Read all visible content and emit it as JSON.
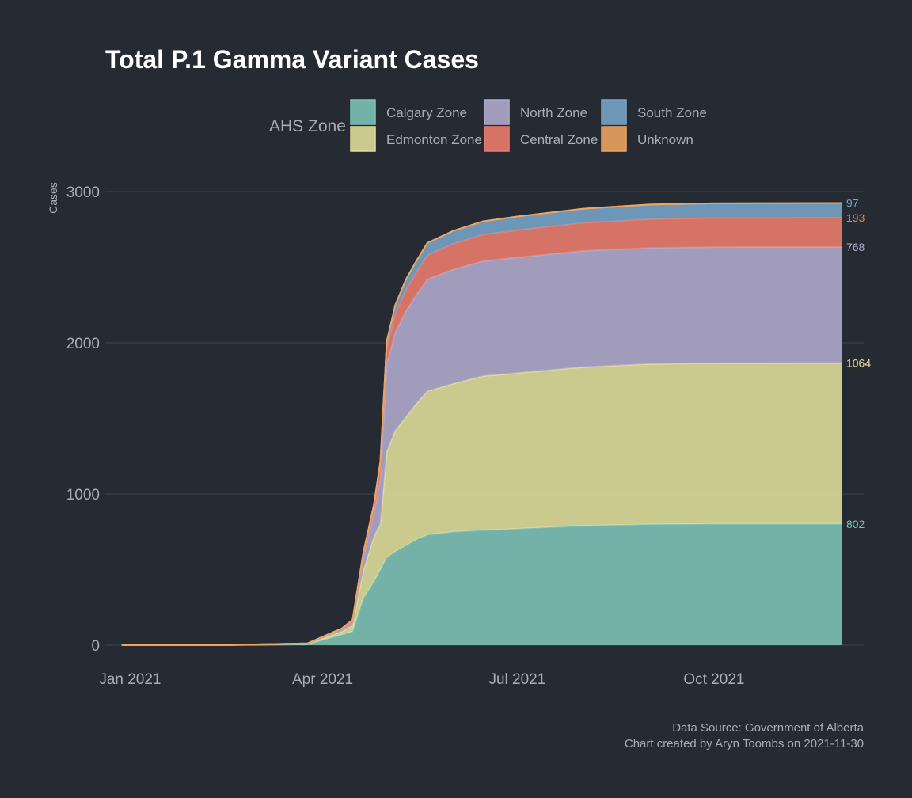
{
  "chart_data": {
    "type": "area",
    "stacked": true,
    "title": "Total P.1 Gamma Variant Cases",
    "ylabel": "Cases",
    "xlabel": "",
    "ylim": [
      0,
      3000
    ],
    "xlim": [
      "2020-12-20",
      "2021-12-10"
    ],
    "grid": true,
    "legend": {
      "title": "AHS Zone",
      "placement": "top",
      "items": [
        "Calgary Zone",
        "Edmonton Zone",
        "North Zone",
        "Central Zone",
        "South Zone",
        "Unknown"
      ]
    },
    "x_ticks": [
      {
        "date": "2021-01-01",
        "label": "Jan 2021"
      },
      {
        "date": "2021-04-01",
        "label": "Apr 2021"
      },
      {
        "date": "2021-07-01",
        "label": "Jul 2021"
      },
      {
        "date": "2021-10-01",
        "label": "Oct 2021"
      }
    ],
    "y_ticks": [
      0,
      1000,
      2000,
      3000
    ],
    "x": [
      "2020-12-28",
      "2021-02-10",
      "2021-03-25",
      "2021-04-10",
      "2021-04-15",
      "2021-04-20",
      "2021-04-25",
      "2021-04-28",
      "2021-05-01",
      "2021-05-05",
      "2021-05-10",
      "2021-05-15",
      "2021-05-20",
      "2021-06-01",
      "2021-06-15",
      "2021-07-01",
      "2021-08-01",
      "2021-09-01",
      "2021-10-01",
      "2021-11-30"
    ],
    "series": [
      {
        "name": "Calgary Zone",
        "color": "#7fc4b8",
        "end_label": "802",
        "values": [
          0,
          0,
          5,
          70,
          90,
          310,
          420,
          500,
          580,
          620,
          660,
          700,
          730,
          750,
          760,
          770,
          790,
          800,
          802,
          802
        ]
      },
      {
        "name": "Edmonton Zone",
        "color": "#e1e09b",
        "end_label": "1064",
        "values": [
          0,
          0,
          5,
          20,
          40,
          180,
          300,
          300,
          700,
          800,
          850,
          900,
          950,
          980,
          1020,
          1030,
          1050,
          1060,
          1063,
          1064
        ]
      },
      {
        "name": "North Zone",
        "color": "#b3abcf",
        "end_label": "768",
        "values": [
          0,
          0,
          1,
          10,
          20,
          90,
          150,
          300,
          580,
          650,
          700,
          720,
          740,
          755,
          760,
          765,
          768,
          768,
          768,
          768
        ]
      },
      {
        "name": "Central Zone",
        "color": "#ee7d6d",
        "end_label": "193",
        "values": [
          0,
          0,
          1,
          8,
          12,
          20,
          40,
          80,
          100,
          120,
          140,
          150,
          160,
          170,
          175,
          180,
          185,
          190,
          192,
          193
        ]
      },
      {
        "name": "South Zone",
        "color": "#79a5c9",
        "end_label": "97",
        "values": [
          0,
          0,
          0,
          3,
          6,
          10,
          20,
          35,
          50,
          60,
          70,
          75,
          80,
          85,
          88,
          90,
          94,
          96,
          97,
          97
        ]
      },
      {
        "name": "Unknown",
        "color": "#f0a55e",
        "end_label": "",
        "values": [
          0,
          0,
          0,
          0,
          0,
          0,
          0,
          0,
          0,
          0,
          0,
          0,
          0,
          0,
          0,
          0,
          0,
          0,
          0,
          0
        ]
      }
    ],
    "caption": [
      "Data Source: Government of Alberta",
      "Chart created by Aryn Toombs on 2021-11-30"
    ]
  }
}
